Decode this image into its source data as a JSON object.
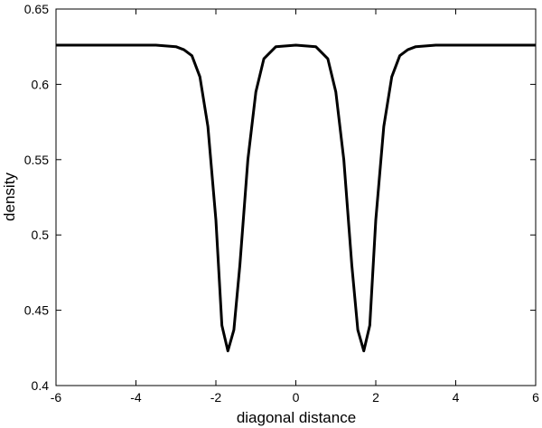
{
  "chart_data": {
    "type": "line",
    "x_label": "diagonal distance",
    "y_label": "density",
    "x": [
      -6,
      -5,
      -4,
      -3.5,
      -3,
      -2.8,
      -2.6,
      -2.4,
      -2.2,
      -2.0,
      -1.85,
      -1.7,
      -1.55,
      -1.4,
      -1.2,
      -1.0,
      -0.8,
      -0.5,
      0,
      0.5,
      0.8,
      1.0,
      1.2,
      1.4,
      1.55,
      1.7,
      1.85,
      2.0,
      2.2,
      2.4,
      2.6,
      2.8,
      3,
      3.5,
      4,
      5,
      6
    ],
    "series": [
      {
        "color": "#000000",
        "values": [
          0.626,
          0.626,
          0.626,
          0.626,
          0.625,
          0.623,
          0.619,
          0.605,
          0.572,
          0.51,
          0.44,
          0.423,
          0.437,
          0.48,
          0.55,
          0.595,
          0.617,
          0.625,
          0.626,
          0.625,
          0.617,
          0.595,
          0.55,
          0.48,
          0.437,
          0.423,
          0.44,
          0.51,
          0.572,
          0.605,
          0.619,
          0.623,
          0.625,
          0.626,
          0.626,
          0.626,
          0.626
        ]
      }
    ],
    "xlim": [
      -6,
      6
    ],
    "xticks": [
      -6,
      -4,
      -2,
      0,
      2,
      4,
      6
    ],
    "ylim": [
      0.4,
      0.65
    ],
    "yticks": [
      0.4,
      0.45,
      0.5,
      0.55,
      0.6,
      0.65
    ],
    "grid": false
  }
}
